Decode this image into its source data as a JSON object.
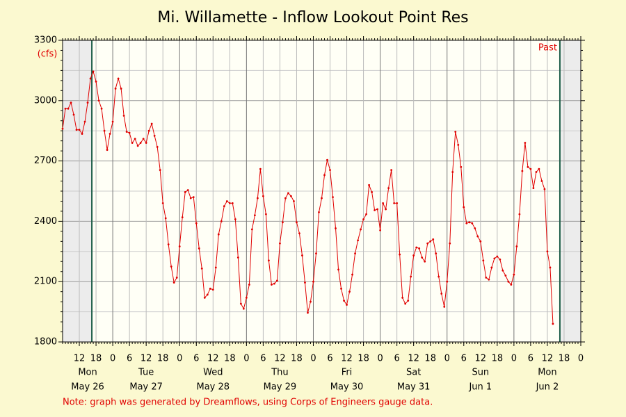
{
  "chart_data": {
    "type": "line",
    "title": "Mi. Willamette - Inflow Lookout Point Res",
    "y_unit": "(cfs)",
    "annotation": "Past",
    "note": "Note: graph was generated by Dreamflows, using Corps of Engineers gauge data.",
    "color": "#e00000",
    "grid": true,
    "past_range": [
      16.5,
      184.5
    ],
    "xlim": [
      6,
      192
    ],
    "ylim": [
      1800,
      3300
    ],
    "yticks": [
      1800,
      2100,
      2400,
      2700,
      3000,
      3300
    ],
    "xticks": [
      {
        "value": 12,
        "label": "12"
      },
      {
        "value": 18,
        "label": "18"
      },
      {
        "value": 24,
        "label": "0"
      },
      {
        "value": 30,
        "label": "6"
      },
      {
        "value": 36,
        "label": "12"
      },
      {
        "value": 42,
        "label": "18"
      },
      {
        "value": 48,
        "label": "0"
      },
      {
        "value": 54,
        "label": "6"
      },
      {
        "value": 60,
        "label": "12"
      },
      {
        "value": 66,
        "label": "18"
      },
      {
        "value": 72,
        "label": "0"
      },
      {
        "value": 78,
        "label": "6"
      },
      {
        "value": 84,
        "label": "12"
      },
      {
        "value": 90,
        "label": "18"
      },
      {
        "value": 96,
        "label": "0"
      },
      {
        "value": 102,
        "label": "6"
      },
      {
        "value": 108,
        "label": "12"
      },
      {
        "value": 114,
        "label": "18"
      },
      {
        "value": 120,
        "label": "0"
      },
      {
        "value": 126,
        "label": "6"
      },
      {
        "value": 132,
        "label": "12"
      },
      {
        "value": 138,
        "label": "18"
      },
      {
        "value": 144,
        "label": "0"
      },
      {
        "value": 150,
        "label": "6"
      },
      {
        "value": 156,
        "label": "12"
      },
      {
        "value": 162,
        "label": "18"
      },
      {
        "value": 168,
        "label": "0"
      },
      {
        "value": 174,
        "label": "6"
      },
      {
        "value": 180,
        "label": "12"
      },
      {
        "value": 186,
        "label": "18"
      },
      {
        "value": 192,
        "label": "0"
      }
    ],
    "days": [
      {
        "weekday": "Mon",
        "date": "May 26",
        "start": 0
      },
      {
        "weekday": "Tue",
        "date": "May 27",
        "start": 24
      },
      {
        "weekday": "Wed",
        "date": "May 28",
        "start": 48
      },
      {
        "weekday": "Thu",
        "date": "May 29",
        "start": 72
      },
      {
        "weekday": "Fri",
        "date": "May 30",
        "start": 96
      },
      {
        "weekday": "Sat",
        "date": "May 31",
        "start": 120
      },
      {
        "weekday": "Sun",
        "date": "Jun 1",
        "start": 144
      },
      {
        "weekday": "Mon",
        "date": "Jun 2",
        "start": 168
      }
    ],
    "x": [
      6,
      7,
      8,
      9,
      10,
      11,
      12,
      13,
      14,
      15,
      16,
      17,
      18,
      19,
      20,
      21,
      22,
      23,
      24,
      25,
      26,
      27,
      28,
      29,
      30,
      31,
      32,
      33,
      34,
      35,
      36,
      37,
      38,
      39,
      40,
      41,
      42,
      43,
      44,
      45,
      46,
      47,
      48,
      49,
      50,
      51,
      52,
      53,
      54,
      55,
      56,
      57,
      58,
      59,
      60,
      61,
      62,
      63,
      64,
      65,
      66,
      67,
      68,
      69,
      70,
      71,
      72,
      73,
      74,
      75,
      76,
      77,
      78,
      79,
      80,
      81,
      82,
      83,
      84,
      85,
      86,
      87,
      88,
      89,
      90,
      91,
      92,
      93,
      94,
      95,
      96,
      97,
      98,
      99,
      100,
      101,
      102,
      103,
      104,
      105,
      106,
      107,
      108,
      109,
      110,
      111,
      112,
      113,
      114,
      115,
      116,
      117,
      118,
      119,
      120,
      121,
      122,
      123,
      124,
      125,
      126,
      127,
      128,
      129,
      130,
      131,
      132,
      133,
      134,
      135,
      136,
      137,
      138,
      139,
      140,
      141,
      142,
      143,
      144,
      145,
      146,
      147,
      148,
      149,
      150,
      151,
      152,
      153,
      154,
      155,
      156,
      157,
      158,
      159,
      160,
      161,
      162,
      163,
      164,
      165,
      166,
      167,
      168,
      169,
      170,
      171,
      172,
      173,
      174,
      175,
      176,
      177,
      178,
      179,
      180,
      181,
      182
    ],
    "values": [
      2860,
      2960,
      2960,
      2990,
      2930,
      2855,
      2855,
      2835,
      2895,
      2990,
      3110,
      3145,
      3095,
      3000,
      2960,
      2850,
      2755,
      2835,
      2895,
      3060,
      3110,
      3060,
      2925,
      2845,
      2840,
      2790,
      2810,
      2775,
      2790,
      2810,
      2790,
      2850,
      2885,
      2825,
      2770,
      2655,
      2490,
      2415,
      2285,
      2175,
      2095,
      2120,
      2275,
      2420,
      2545,
      2555,
      2515,
      2520,
      2390,
      2265,
      2165,
      2020,
      2035,
      2065,
      2060,
      2170,
      2335,
      2400,
      2475,
      2500,
      2490,
      2490,
      2410,
      2220,
      1990,
      1965,
      2020,
      2085,
      2360,
      2430,
      2515,
      2660,
      2525,
      2435,
      2205,
      2085,
      2090,
      2105,
      2290,
      2395,
      2515,
      2540,
      2525,
      2500,
      2395,
      2340,
      2230,
      2095,
      1945,
      2000,
      2100,
      2240,
      2445,
      2515,
      2630,
      2705,
      2655,
      2520,
      2365,
      2160,
      2065,
      2005,
      1985,
      2050,
      2135,
      2240,
      2305,
      2360,
      2410,
      2435,
      2580,
      2545,
      2455,
      2460,
      2355,
      2490,
      2460,
      2565,
      2655,
      2490,
      2490,
      2235,
      2020,
      1990,
      2005,
      2125,
      2230,
      2270,
      2265,
      2220,
      2200,
      2290,
      2300,
      2310,
      2240,
      2125,
      2040,
      1975,
      2100,
      2290,
      2645,
      2845,
      2780,
      2670,
      2470,
      2390,
      2395,
      2390,
      2365,
      2325,
      2300,
      2205,
      2120,
      2110,
      2170,
      2215,
      2225,
      2210,
      2155,
      2130,
      2100,
      2085,
      2135,
      2275,
      2435,
      2650,
      2790,
      2670,
      2660,
      2565,
      2645,
      2660,
      2600,
      2560,
      2250,
      2170,
      1890
    ]
  }
}
